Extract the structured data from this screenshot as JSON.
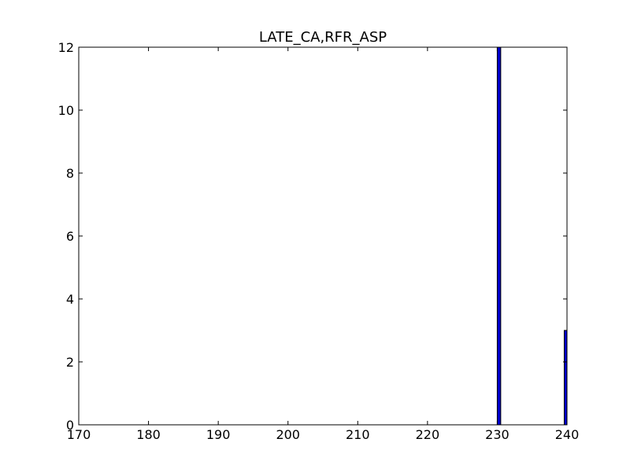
{
  "chart_data": {
    "type": "bar",
    "title": "LATE_CA,RFR_ASP",
    "xlabel": "",
    "ylabel": "",
    "xlim": [
      170,
      240
    ],
    "ylim": [
      0,
      12
    ],
    "xticks": [
      "170",
      "180",
      "190",
      "200",
      "210",
      "220",
      "230",
      "240"
    ],
    "yticks": [
      "0",
      "2",
      "4",
      "6",
      "8",
      "10",
      "12"
    ],
    "grid": false,
    "bar_color": "#0000cc",
    "bins": [
      {
        "x0": 230.0,
        "x1": 230.5,
        "value": 12
      },
      {
        "x0": 230.5,
        "x1": 239.6,
        "value": 0
      },
      {
        "x0": 239.6,
        "x1": 240.0,
        "value": 3
      }
    ]
  }
}
